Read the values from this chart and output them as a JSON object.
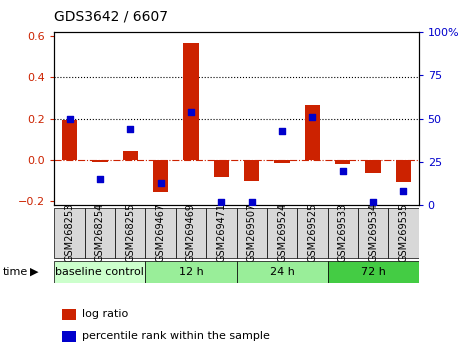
{
  "title": "GDS3642 / 6607",
  "samples": [
    "GSM268253",
    "GSM268254",
    "GSM268255",
    "GSM269467",
    "GSM269469",
    "GSM269471",
    "GSM269507",
    "GSM269524",
    "GSM269525",
    "GSM269533",
    "GSM269534",
    "GSM269535"
  ],
  "log_ratio": [
    0.195,
    -0.01,
    0.045,
    -0.155,
    0.565,
    -0.085,
    -0.1,
    -0.015,
    0.265,
    -0.02,
    -0.065,
    -0.105
  ],
  "percentile_pct": [
    50,
    15,
    44,
    13,
    54,
    2,
    2,
    43,
    51,
    20,
    2,
    8
  ],
  "groups": [
    {
      "label": "baseline control",
      "start": 0,
      "end": 3,
      "color": "#ccffcc"
    },
    {
      "label": "12 h",
      "start": 3,
      "end": 6,
      "color": "#99ee99"
    },
    {
      "label": "24 h",
      "start": 6,
      "end": 9,
      "color": "#99ee99"
    },
    {
      "label": "72 h",
      "start": 9,
      "end": 12,
      "color": "#44cc44"
    }
  ],
  "ylim": [
    -0.22,
    0.62
  ],
  "yticks": [
    -0.2,
    0.0,
    0.2,
    0.4,
    0.6
  ],
  "y2lim": [
    0,
    100
  ],
  "y2ticks": [
    0,
    25,
    50,
    75,
    100
  ],
  "y2ticklabels": [
    "0",
    "25",
    "50",
    "75",
    "100%"
  ],
  "bar_color": "#cc2200",
  "point_color": "#0000cc",
  "dotted_lines": [
    0.2,
    0.4
  ],
  "zero_line_color": "#cc2200",
  "tick_label_color_left": "#cc2200",
  "tick_label_color_right": "#0000cc",
  "bar_width": 0.5,
  "point_size": 22
}
